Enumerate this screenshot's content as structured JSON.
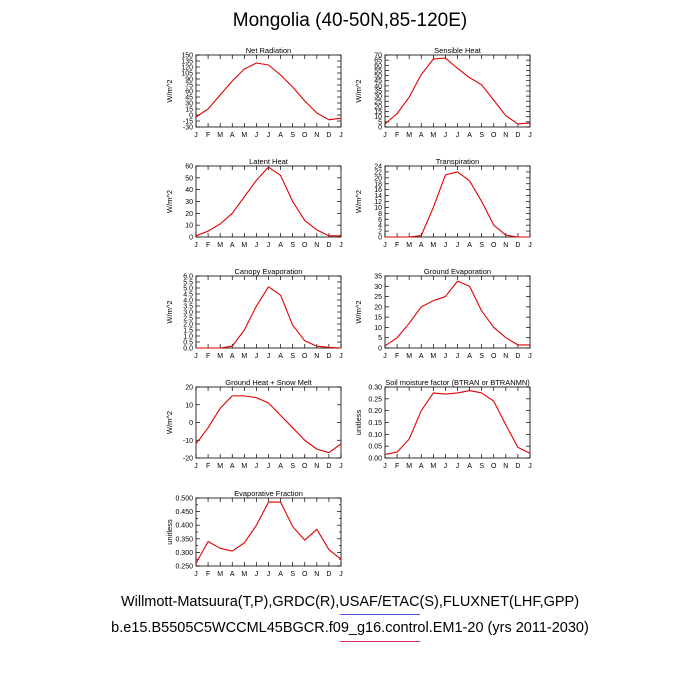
{
  "title": "Mongolia (40-50N,85-120E)",
  "footer": {
    "line1": "Willmott-Matsuura(T,P),GRDC(R),USAF/ETAC(S),FLUXNET(LHF,GPP)",
    "line2": "b.e15.B5505C5WCCML45BGCR.f09_g16.control.EM1-20 (yrs 2011-2030)"
  },
  "colors": {
    "series": "#e00000",
    "decoration_blue": "#5555dd",
    "decoration_red": "#e03060"
  },
  "chart_data": [
    {
      "type": "line",
      "title": "Net Radiation",
      "ylabel": "W/m^2",
      "categories": [
        "J",
        "F",
        "M",
        "A",
        "M",
        "J",
        "J",
        "A",
        "S",
        "O",
        "N",
        "D",
        "J"
      ],
      "values": [
        -5,
        15,
        50,
        85,
        115,
        130,
        125,
        100,
        70,
        35,
        5,
        -12,
        -8
      ],
      "ylim": [
        -30,
        150
      ],
      "yticks": [
        -30,
        -15,
        0,
        15,
        30,
        45,
        60,
        75,
        90,
        105,
        120,
        135,
        150
      ]
    },
    {
      "type": "line",
      "title": "Sensible Heat",
      "ylabel": "W/m^2",
      "categories": [
        "J",
        "F",
        "M",
        "A",
        "M",
        "J",
        "J",
        "A",
        "S",
        "O",
        "N",
        "D",
        "J"
      ],
      "values": [
        3,
        13,
        29,
        51,
        66,
        67,
        57,
        48,
        41,
        26,
        11,
        3,
        4
      ],
      "ylim": [
        0,
        70
      ],
      "yticks": [
        0,
        5,
        10,
        15,
        20,
        25,
        30,
        35,
        40,
        45,
        50,
        55,
        60,
        65,
        70
      ]
    },
    {
      "type": "line",
      "title": "Latent Heat",
      "ylabel": "W/m^2",
      "categories": [
        "J",
        "F",
        "M",
        "A",
        "M",
        "J",
        "J",
        "A",
        "S",
        "O",
        "N",
        "D",
        "J"
      ],
      "values": [
        1,
        5,
        11,
        20,
        34,
        48,
        59,
        52,
        30,
        14,
        6,
        1,
        1
      ],
      "ylim": [
        0,
        60
      ],
      "yticks": [
        0,
        10,
        20,
        30,
        40,
        50,
        60
      ]
    },
    {
      "type": "line",
      "title": "Transpiration",
      "ylabel": "W/m^2",
      "categories": [
        "J",
        "F",
        "M",
        "A",
        "M",
        "J",
        "J",
        "A",
        "S",
        "O",
        "N",
        "D",
        "J"
      ],
      "values": [
        0,
        0,
        0,
        0.5,
        10,
        21,
        22,
        19,
        12,
        4,
        0.6,
        0,
        0
      ],
      "ylim": [
        0,
        24
      ],
      "yticks": [
        0,
        2,
        4,
        6,
        8,
        10,
        12,
        14,
        16,
        18,
        20,
        22,
        24
      ]
    },
    {
      "type": "line",
      "title": "Canopy Evaporation",
      "ylabel": "W/m^2",
      "categories": [
        "J",
        "F",
        "M",
        "A",
        "M",
        "J",
        "J",
        "A",
        "S",
        "O",
        "N",
        "D",
        "J"
      ],
      "values": [
        0,
        0,
        0,
        0.15,
        1.5,
        3.5,
        5.1,
        4.4,
        1.9,
        0.6,
        0.15,
        0.05,
        0
      ],
      "ylim": [
        0,
        6
      ],
      "yticks": [
        0.0,
        0.5,
        1.0,
        1.5,
        2.0,
        2.5,
        3.0,
        3.5,
        4.0,
        4.5,
        5.0,
        5.5,
        6.0
      ],
      "tick_decimals": 1
    },
    {
      "type": "line",
      "title": "Ground Evaporation",
      "ylabel": "W/m^2",
      "categories": [
        "J",
        "F",
        "M",
        "A",
        "M",
        "J",
        "J",
        "A",
        "S",
        "O",
        "N",
        "D",
        "J"
      ],
      "values": [
        1,
        5,
        12,
        20,
        23,
        25,
        32.5,
        30,
        18,
        10,
        5,
        1.5,
        1.5
      ],
      "ylim": [
        0,
        35
      ],
      "yticks": [
        0,
        5,
        10,
        15,
        20,
        25,
        30,
        35
      ]
    },
    {
      "type": "line",
      "title": "Ground Heat + Snow Melt",
      "ylabel": "W/m^2",
      "categories": [
        "J",
        "F",
        "M",
        "A",
        "M",
        "J",
        "J",
        "A",
        "S",
        "O",
        "N",
        "D",
        "J"
      ],
      "values": [
        -12,
        -3,
        8,
        15,
        15,
        14,
        11,
        4,
        -3,
        -10,
        -15,
        -17,
        -12
      ],
      "ylim": [
        -20,
        20
      ],
      "yticks": [
        -20,
        -10,
        0,
        10,
        20
      ]
    },
    {
      "type": "line",
      "title": "Soil moisture factor (BTRAN or BTRANMN)",
      "ylabel": "unitless",
      "categories": [
        "J",
        "F",
        "M",
        "A",
        "M",
        "J",
        "J",
        "A",
        "S",
        "O",
        "N",
        "D",
        "J"
      ],
      "values": [
        0.015,
        0.025,
        0.08,
        0.2,
        0.275,
        0.27,
        0.275,
        0.285,
        0.275,
        0.24,
        0.14,
        0.045,
        0.02
      ],
      "ylim": [
        0,
        0.3
      ],
      "yticks": [
        0.0,
        0.05,
        0.1,
        0.15,
        0.2,
        0.25,
        0.3
      ],
      "tick_decimals": 2
    },
    {
      "type": "line",
      "title": "Evaporative Fraction",
      "ylabel": "unitless",
      "categories": [
        "J",
        "F",
        "M",
        "A",
        "M",
        "J",
        "J",
        "A",
        "S",
        "O",
        "N",
        "D",
        "J"
      ],
      "values": [
        0.26,
        0.34,
        0.315,
        0.305,
        0.335,
        0.4,
        0.485,
        0.485,
        0.395,
        0.345,
        0.385,
        0.31,
        0.275
      ],
      "ylim": [
        0.25,
        0.5
      ],
      "yticks": [
        0.25,
        0.275,
        0.3,
        0.325,
        0.35,
        0.375,
        0.4,
        0.425,
        0.45,
        0.475,
        0.5
      ],
      "labeled_yticks": [
        0.25,
        0.3,
        0.35,
        0.4,
        0.45,
        0.5
      ],
      "tick_decimals": 3
    }
  ]
}
